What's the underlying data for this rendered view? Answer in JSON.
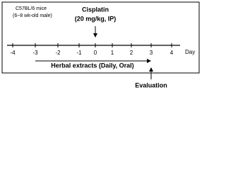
{
  "mice": {
    "strain": "C57BL/6 mice",
    "detail": "(6~8 wk-old male)"
  },
  "treatment": {
    "name": "Cisplatin",
    "dose": "(20 mg/kg, IP)"
  },
  "timeline": {
    "ticks": [
      "-4",
      "-3",
      "-2",
      "-1",
      "0",
      "1",
      "2",
      "3",
      "4"
    ],
    "unit": "Day"
  },
  "herbal": "Herbal extracts (Daily, Oral)",
  "evaluation": "Evaluation"
}
